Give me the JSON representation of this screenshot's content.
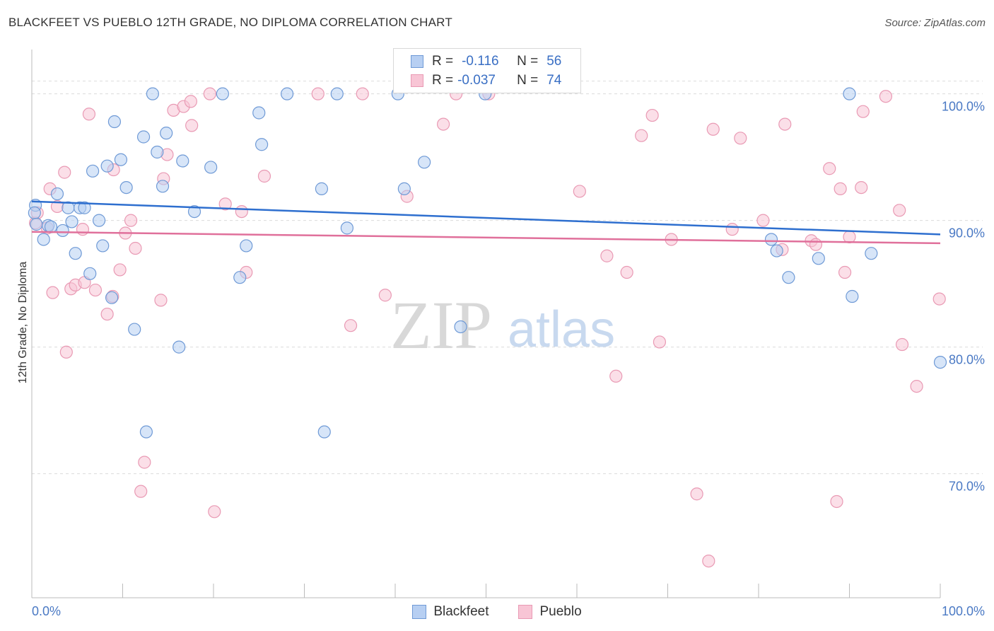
{
  "header": {
    "title": "BLACKFEET VS PUEBLO 12TH GRADE, NO DIPLOMA CORRELATION CHART",
    "source": "Source: ZipAtlas.com"
  },
  "legend": {
    "rows": [
      {
        "r_label": "R =",
        "r_value": "-0.116",
        "n_label": "N =",
        "n_value": "56"
      },
      {
        "r_label": "R =",
        "r_value": "-0.037",
        "n_label": "N =",
        "n_value": "74"
      }
    ]
  },
  "bottom_legend": {
    "blackfeet": "Blackfeet",
    "pueblo": "Pueblo"
  },
  "watermark": {
    "zip": "ZIP",
    "atlas": "atlas"
  },
  "colors": {
    "blackfeet_fill": "#b7cff2",
    "blackfeet_stroke": "#6f9ad6",
    "blackfeet_line": "#2e6fcf",
    "pueblo_fill": "#f8c5d5",
    "pueblo_stroke": "#e99ab4",
    "pueblo_line": "#e0709b",
    "tick_text": "#4a79c4",
    "grid": "#dcdcdc"
  },
  "chart_data": {
    "type": "scatter",
    "title": "BLACKFEET VS PUEBLO 12TH GRADE, NO DIPLOMA CORRELATION CHART",
    "xlabel": "",
    "ylabel": "12th Grade, No Diploma",
    "xlim": [
      0,
      100
    ],
    "ylim": [
      60.2,
      103.5
    ],
    "x_tick_labels": [
      "0.0%",
      "100.0%"
    ],
    "y_ticks": [
      70,
      80,
      90,
      100
    ],
    "y_tick_labels": [
      "70.0%",
      "80.0%",
      "90.0%",
      "100.0%"
    ],
    "grid": true,
    "legend_position": "top-center",
    "series": [
      {
        "name": "Blackfeet",
        "r": -0.116,
        "n": 56,
        "trend": {
          "x": [
            0,
            100
          ],
          "y": [
            91.5,
            88.9
          ]
        },
        "points": [
          [
            0.4,
            91.2
          ],
          [
            0.3,
            90.6
          ],
          [
            0.5,
            89.7
          ],
          [
            1.3,
            88.5
          ],
          [
            1.8,
            89.6
          ],
          [
            2.8,
            92.1
          ],
          [
            3.4,
            89.2
          ],
          [
            4.0,
            91.0
          ],
          [
            4.4,
            89.9
          ],
          [
            4.8,
            87.4
          ],
          [
            5.3,
            91.0
          ],
          [
            5.8,
            91.0
          ],
          [
            6.4,
            85.8
          ],
          [
            6.7,
            93.9
          ],
          [
            7.4,
            90.0
          ],
          [
            7.8,
            88.0
          ],
          [
            8.3,
            94.3
          ],
          [
            8.8,
            83.9
          ],
          [
            9.1,
            97.8
          ],
          [
            9.8,
            94.8
          ],
          [
            10.4,
            92.6
          ],
          [
            11.3,
            81.4
          ],
          [
            12.3,
            96.6
          ],
          [
            12.6,
            73.3
          ],
          [
            13.3,
            100.0
          ],
          [
            13.8,
            95.4
          ],
          [
            14.4,
            92.7
          ],
          [
            14.8,
            96.9
          ],
          [
            16.2,
            80.0
          ],
          [
            16.6,
            94.7
          ],
          [
            17.9,
            90.7
          ],
          [
            19.7,
            94.2
          ],
          [
            21.0,
            100.0
          ],
          [
            22.9,
            85.5
          ],
          [
            23.6,
            88.0
          ],
          [
            25.0,
            98.5
          ],
          [
            25.3,
            96.0
          ],
          [
            28.1,
            100.0
          ],
          [
            31.9,
            92.5
          ],
          [
            32.2,
            73.3
          ],
          [
            33.6,
            100.0
          ],
          [
            34.7,
            89.4
          ],
          [
            40.3,
            100.0
          ],
          [
            41.0,
            92.5
          ],
          [
            43.2,
            94.6
          ],
          [
            47.2,
            81.6
          ],
          [
            49.9,
            100.0
          ],
          [
            81.4,
            88.5
          ],
          [
            82.0,
            87.6
          ],
          [
            83.3,
            85.5
          ],
          [
            86.6,
            87.0
          ],
          [
            90.0,
            100.0
          ],
          [
            90.3,
            84.0
          ],
          [
            92.4,
            87.4
          ],
          [
            100.0,
            78.8
          ],
          [
            2.1,
            89.5
          ]
        ]
      },
      {
        "name": "Pueblo",
        "r": -0.037,
        "n": 74,
        "trend": {
          "x": [
            0,
            100
          ],
          "y": [
            89.1,
            88.2
          ]
        },
        "points": [
          [
            0.4,
            89.8
          ],
          [
            0.6,
            90.6
          ],
          [
            1.7,
            89.4
          ],
          [
            2.0,
            92.5
          ],
          [
            2.3,
            84.3
          ],
          [
            2.8,
            91.1
          ],
          [
            3.6,
            93.8
          ],
          [
            3.8,
            79.6
          ],
          [
            4.3,
            84.6
          ],
          [
            4.8,
            84.9
          ],
          [
            5.6,
            89.3
          ],
          [
            5.8,
            85.1
          ],
          [
            6.3,
            98.4
          ],
          [
            7.0,
            84.5
          ],
          [
            8.3,
            82.6
          ],
          [
            8.9,
            84.0
          ],
          [
            9.0,
            94.0
          ],
          [
            9.7,
            86.1
          ],
          [
            10.3,
            89.0
          ],
          [
            10.9,
            90.0
          ],
          [
            11.4,
            87.8
          ],
          [
            12.0,
            68.6
          ],
          [
            12.4,
            70.9
          ],
          [
            14.2,
            83.7
          ],
          [
            14.5,
            93.3
          ],
          [
            14.9,
            95.2
          ],
          [
            15.6,
            98.7
          ],
          [
            16.7,
            99.0
          ],
          [
            17.5,
            99.4
          ],
          [
            17.6,
            97.5
          ],
          [
            19.6,
            100.0
          ],
          [
            20.1,
            67.0
          ],
          [
            21.3,
            91.3
          ],
          [
            23.1,
            90.7
          ],
          [
            23.6,
            85.9
          ],
          [
            25.6,
            93.5
          ],
          [
            31.5,
            100.0
          ],
          [
            35.1,
            81.7
          ],
          [
            36.4,
            100.0
          ],
          [
            38.9,
            84.1
          ],
          [
            41.3,
            91.9
          ],
          [
            45.3,
            97.6
          ],
          [
            46.7,
            100.0
          ],
          [
            50.3,
            100.0
          ],
          [
            60.3,
            92.3
          ],
          [
            63.3,
            87.2
          ],
          [
            64.3,
            77.7
          ],
          [
            65.5,
            85.9
          ],
          [
            67.1,
            96.7
          ],
          [
            68.3,
            98.3
          ],
          [
            69.1,
            80.4
          ],
          [
            70.4,
            88.5
          ],
          [
            73.2,
            68.4
          ],
          [
            74.5,
            63.1
          ],
          [
            75.0,
            97.2
          ],
          [
            77.1,
            89.3
          ],
          [
            78.0,
            96.5
          ],
          [
            80.5,
            90.0
          ],
          [
            82.6,
            87.7
          ],
          [
            82.9,
            97.6
          ],
          [
            85.8,
            88.4
          ],
          [
            86.3,
            88.1
          ],
          [
            87.8,
            94.1
          ],
          [
            88.6,
            67.8
          ],
          [
            89.0,
            92.5
          ],
          [
            89.5,
            85.9
          ],
          [
            90.0,
            88.7
          ],
          [
            91.3,
            92.6
          ],
          [
            91.5,
            98.6
          ],
          [
            94.0,
            99.8
          ],
          [
            95.5,
            90.8
          ],
          [
            95.8,
            80.2
          ],
          [
            97.4,
            76.9
          ],
          [
            99.9,
            83.8
          ]
        ]
      }
    ]
  }
}
